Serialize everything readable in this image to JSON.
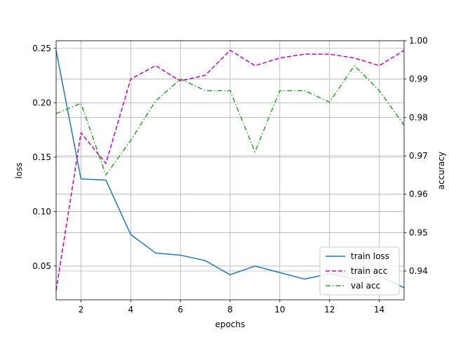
{
  "chart_data": {
    "type": "line",
    "title": "",
    "xlabel": "epochs",
    "ylabel_left": "loss",
    "ylabel_right": "accuracy",
    "xlim": [
      1,
      15
    ],
    "ylim_left": [
      0.019,
      0.257
    ],
    "ylim_right": [
      0.9325,
      1.0
    ],
    "xticks": [
      2,
      4,
      6,
      8,
      10,
      12,
      14
    ],
    "yticks_left": [
      0.05,
      0.1,
      0.15,
      0.2,
      0.25
    ],
    "yticks_left_labels": [
      "0.05",
      "0.10",
      "0.15",
      "0.20",
      "0.25"
    ],
    "yticks_right": [
      0.94,
      0.95,
      0.96,
      0.97,
      0.98,
      0.99,
      1.0
    ],
    "yticks_right_labels": [
      "0.94",
      "0.95",
      "0.96",
      "0.97",
      "0.98",
      "0.99",
      "1.00"
    ],
    "grid": true,
    "legend_position": "lower-right",
    "x": [
      1,
      2,
      3,
      4,
      5,
      6,
      7,
      8,
      9,
      10,
      11,
      12,
      13,
      14,
      15
    ],
    "series": [
      {
        "name": "train loss",
        "axis": "left",
        "color": "#1f77b4",
        "style": "solid",
        "values": [
          0.248,
          0.13,
          0.129,
          0.079,
          0.062,
          0.06,
          0.055,
          0.042,
          0.05,
          0.044,
          0.038,
          0.043,
          0.038,
          0.041,
          0.03
        ]
      },
      {
        "name": "train acc",
        "axis": "right",
        "color": "#bf00bf",
        "style": "dashed",
        "values": [
          0.935,
          0.976,
          0.968,
          0.99,
          0.9935,
          0.9895,
          0.991,
          0.9975,
          0.9935,
          0.9955,
          0.9965,
          0.9965,
          0.9955,
          0.9935,
          0.9975
        ]
      },
      {
        "name": "val acc",
        "axis": "right",
        "color": "#2ca02c",
        "style": "dashdot",
        "values": [
          0.981,
          0.9837,
          0.965,
          0.974,
          0.9843,
          0.99,
          0.987,
          0.987,
          0.971,
          0.987,
          0.987,
          0.984,
          0.9935,
          0.987,
          0.978
        ]
      }
    ]
  }
}
